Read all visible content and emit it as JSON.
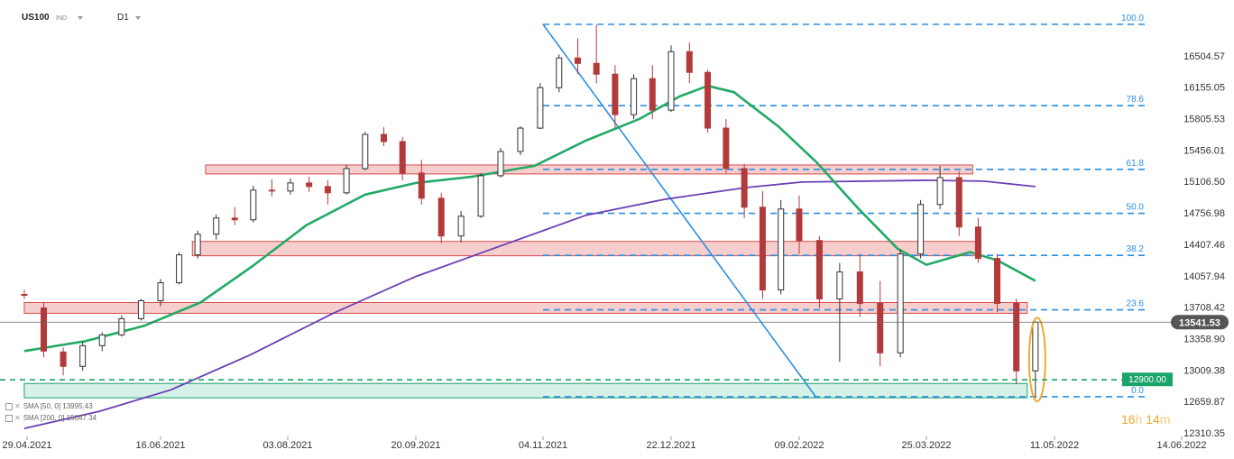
{
  "header": {
    "symbol": "US100",
    "tag": "IND",
    "timeframe": "D1"
  },
  "timer": {
    "hours": "16",
    "h_unit": "h",
    "minutes": "14",
    "m_unit": "m"
  },
  "legend": [
    {
      "label": "SMA [50, 0] 13995.43"
    },
    {
      "label": "SMA [200, 0] 15047.34"
    }
  ],
  "chart_data": {
    "type": "candlestick",
    "x_ticks": [
      "29.04.2021",
      "16.06.2021",
      "03.08.2021",
      "20.09.2021",
      "04.11.2021",
      "22.12.2021",
      "09.02.2022",
      "25.03.2022",
      "11.05.2022",
      "14.06.2022"
    ],
    "y_ticks": [
      16504.57,
      16155.05,
      15805.53,
      15456.01,
      15106.5,
      14756.98,
      14407.46,
      14057.94,
      13708.42,
      13358.9,
      13009.38,
      12659.87,
      12310.35
    ],
    "ylim": [
      12310.35,
      16854.09
    ],
    "last_price": 13541.53,
    "last_price_color": "#555555",
    "levels": [
      {
        "price": 12900.0,
        "label": "12900.00",
        "color": "#1aa36b"
      }
    ],
    "fibonacci": {
      "color": "#2b8fe0",
      "from_date": "04.11.2021",
      "high": 16854.09,
      "low": 12712.6,
      "ratios": [
        {
          "label": "100.0",
          "price": 16854.09
        },
        {
          "label": "78.6",
          "price": 15949.7
        },
        {
          "label": "61.8",
          "price": 15240.7
        },
        {
          "label": "50.0",
          "price": 14752.6
        },
        {
          "label": "38.2",
          "price": 14284.4
        },
        {
          "label": "23.6",
          "price": 13679.0
        },
        {
          "label": "0.0",
          "price": 12712.6
        }
      ]
    },
    "zones": [
      {
        "from": "03.07.2021",
        "to": "11.04.2022",
        "low": 15190,
        "high": 15290,
        "color": "#f3b3b3"
      },
      {
        "from": "28.06.2021",
        "to": "14.04.2022",
        "low": 14280,
        "high": 14440,
        "color": "#f3b3b3"
      },
      {
        "from": "28.04.2021",
        "to": "01.05.2022",
        "low": 13640,
        "high": 13760,
        "color": "#f3b3b3"
      },
      {
        "from": "28.04.2021",
        "to": "01.05.2022",
        "low": 12700,
        "high": 12860,
        "color": "#bfeadb"
      }
    ],
    "trendline": {
      "from": [
        "04.11.2021",
        16854
      ],
      "to": [
        "15.02.2022",
        12700
      ],
      "color": "#2b8fe0"
    },
    "sma50": {
      "name": "SMA [50, 0]",
      "color": "#22aa66",
      "points": [
        [
          "28.04.2021",
          13220
        ],
        [
          "20.05.2021",
          13330
        ],
        [
          "10.06.2021",
          13500
        ],
        [
          "01.07.2021",
          13760
        ],
        [
          "20.07.2021",
          14150
        ],
        [
          "10.08.2021",
          14620
        ],
        [
          "01.09.2021",
          14960
        ],
        [
          "20.09.2021",
          15090
        ],
        [
          "10.10.2021",
          15160
        ],
        [
          "01.11.2021",
          15280
        ],
        [
          "20.11.2021",
          15560
        ],
        [
          "10.12.2021",
          15800
        ],
        [
          "25.12.2021",
          16050
        ],
        [
          "05.01.2022",
          16170
        ],
        [
          "15.01.2022",
          16100
        ],
        [
          "01.02.2022",
          15720
        ],
        [
          "15.02.2022",
          15320
        ],
        [
          "01.03.2022",
          14820
        ],
        [
          "15.03.2022",
          14360
        ],
        [
          "25.03.2022",
          14180
        ],
        [
          "10.04.2022",
          14320
        ],
        [
          "20.04.2022",
          14230
        ],
        [
          "04.05.2022",
          14000
        ]
      ]
    },
    "sma200": {
      "name": "SMA [200, 0]",
      "color": "#6a3fb5",
      "points": [
        [
          "28.04.2021",
          12360
        ],
        [
          "25.05.2021",
          12550
        ],
        [
          "20.06.2021",
          12790
        ],
        [
          "20.07.2021",
          13180
        ],
        [
          "20.08.2021",
          13640
        ],
        [
          "20.09.2021",
          14050
        ],
        [
          "20.10.2021",
          14390
        ],
        [
          "20.11.2021",
          14730
        ],
        [
          "20.12.2021",
          14910
        ],
        [
          "20.01.2022",
          15040
        ],
        [
          "10.02.2022",
          15100
        ],
        [
          "25.03.2022",
          15120
        ],
        [
          "15.04.2022",
          15110
        ],
        [
          "04.05.2022",
          15050
        ]
      ]
    },
    "candles": [
      [
        "28.04.2021",
        13850,
        13900,
        13800,
        13840
      ],
      [
        "05.05.2021",
        13700,
        13760,
        13150,
        13220
      ],
      [
        "12.05.2021",
        13210,
        13260,
        12950,
        13050
      ],
      [
        "19.05.2021",
        13050,
        13320,
        13000,
        13280
      ],
      [
        "26.05.2021",
        13280,
        13430,
        13220,
        13400
      ],
      [
        "02.06.2021",
        13400,
        13620,
        13380,
        13580
      ],
      [
        "09.06.2021",
        13580,
        13800,
        13560,
        13780
      ],
      [
        "16.06.2021",
        13780,
        14020,
        13720,
        13980
      ],
      [
        "23.06.2021",
        13980,
        14320,
        13960,
        14290
      ],
      [
        "30.06.2021",
        14290,
        14560,
        14250,
        14520
      ],
      [
        "07.07.2021",
        14520,
        14740,
        14460,
        14700
      ],
      [
        "14.07.2021",
        14700,
        14820,
        14620,
        14680
      ],
      [
        "21.07.2021",
        14680,
        15060,
        14650,
        15010
      ],
      [
        "28.07.2021",
        15010,
        15130,
        14940,
        15000
      ],
      [
        "04.08.2021",
        15000,
        15140,
        14960,
        15090
      ],
      [
        "11.08.2021",
        15090,
        15160,
        14990,
        15050
      ],
      [
        "18.08.2021",
        15050,
        15120,
        14850,
        14980
      ],
      [
        "25.08.2021",
        14980,
        15290,
        14960,
        15250
      ],
      [
        "01.09.2021",
        15250,
        15660,
        15230,
        15630
      ],
      [
        "08.09.2021",
        15630,
        15710,
        15500,
        15550
      ],
      [
        "15.09.2021",
        15550,
        15600,
        15120,
        15200
      ],
      [
        "22.09.2021",
        15200,
        15350,
        14850,
        14920
      ],
      [
        "29.09.2021",
        14920,
        14980,
        14420,
        14500
      ],
      [
        "06.10.2021",
        14500,
        14780,
        14430,
        14720
      ],
      [
        "13.10.2021",
        14720,
        15200,
        14700,
        15170
      ],
      [
        "20.10.2021",
        15170,
        15480,
        15150,
        15440
      ],
      [
        "27.10.2021",
        15440,
        15720,
        15400,
        15700
      ],
      [
        "03.11.2021",
        15700,
        16200,
        15690,
        16150
      ],
      [
        "10.11.2021",
        16150,
        16520,
        16100,
        16480
      ],
      [
        "17.11.2021",
        16480,
        16700,
        16300,
        16420
      ],
      [
        "24.11.2021",
        16420,
        16850,
        16200,
        16300
      ],
      [
        "01.12.2021",
        16300,
        16400,
        15700,
        15850
      ],
      [
        "08.12.2021",
        15850,
        16300,
        15800,
        16250
      ],
      [
        "15.12.2021",
        16250,
        16400,
        15800,
        15900
      ],
      [
        "22.12.2021",
        15900,
        16620,
        15880,
        16550
      ],
      [
        "29.12.2021",
        16550,
        16650,
        16200,
        16320
      ],
      [
        "05.01.2022",
        16320,
        16350,
        15650,
        15700
      ],
      [
        "12.01.2022",
        15700,
        15800,
        15200,
        15250
      ],
      [
        "19.01.2022",
        15250,
        15300,
        14700,
        14820
      ],
      [
        "26.01.2022",
        14820,
        15000,
        13800,
        13900
      ],
      [
        "02.02.2022",
        13900,
        14900,
        13850,
        14800
      ],
      [
        "09.02.2022",
        14800,
        14950,
        14300,
        14450
      ],
      [
        "16.02.2022",
        14450,
        14500,
        13700,
        13800
      ],
      [
        "23.02.2022",
        13800,
        14200,
        13100,
        14100
      ],
      [
        "02.03.2022",
        14100,
        14300,
        13600,
        13750
      ],
      [
        "09.03.2022",
        13750,
        14000,
        13050,
        13200
      ],
      [
        "16.03.2022",
        13200,
        14350,
        13150,
        14300
      ],
      [
        "23.03.2022",
        14300,
        14900,
        14250,
        14850
      ],
      [
        "30.03.2022",
        14850,
        15280,
        14800,
        15150
      ],
      [
        "06.04.2022",
        15150,
        15220,
        14500,
        14600
      ],
      [
        "13.04.2022",
        14600,
        14700,
        14200,
        14250
      ],
      [
        "20.04.2022",
        14250,
        14300,
        13650,
        13750
      ],
      [
        "27.04.2022",
        13750,
        13800,
        12850,
        13000
      ],
      [
        "04.05.2022",
        13000,
        13550,
        12700,
        13541
      ]
    ]
  }
}
